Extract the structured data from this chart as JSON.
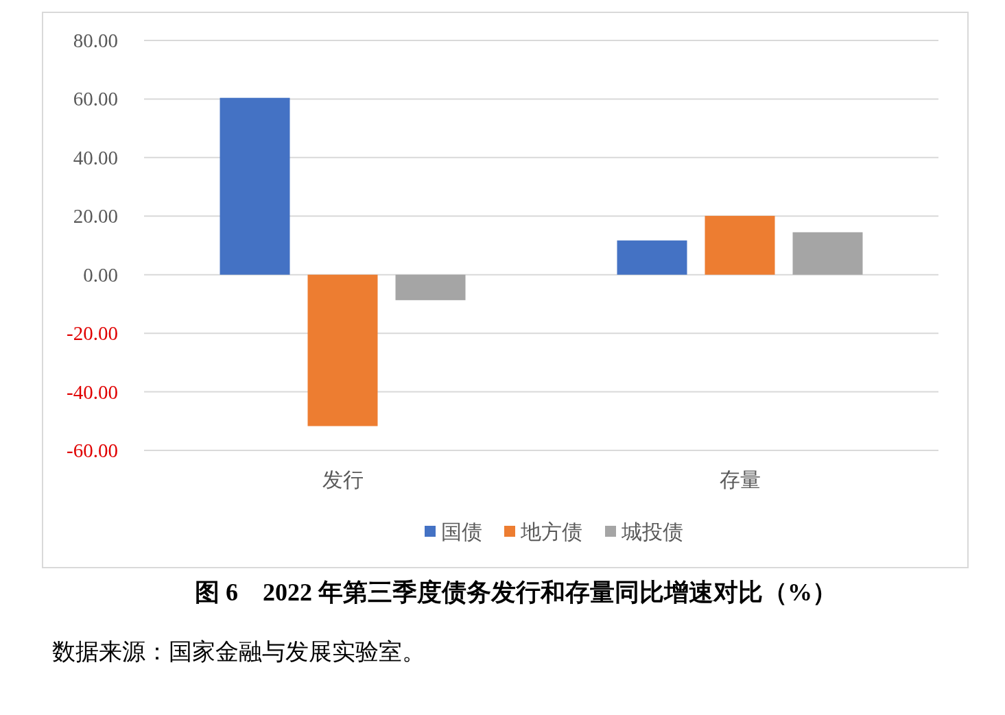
{
  "chart_data": {
    "type": "bar",
    "title": "图 6　2022 年第三季度债务发行和存量同比增速对比（%）",
    "annotations": [
      "数据来源：国家金融与发展实验室。"
    ],
    "categories": [
      "发行",
      "存量"
    ],
    "series": [
      {
        "name": "国债",
        "color": "#4472c4",
        "values": [
          60.4,
          11.7
        ]
      },
      {
        "name": "地方债",
        "color": "#ed7d31",
        "values": [
          -51.7,
          20.1
        ]
      },
      {
        "name": "城投债",
        "color": "#a5a5a5",
        "values": [
          -8.7,
          14.5
        ]
      }
    ],
    "ylim": [
      -60,
      80
    ],
    "yticks": [
      {
        "value": 80,
        "label": "80.00"
      },
      {
        "value": 60,
        "label": "60.00"
      },
      {
        "value": 40,
        "label": "40.00"
      },
      {
        "value": 20,
        "label": "20.00"
      },
      {
        "value": 0,
        "label": "0.00"
      },
      {
        "value": -20,
        "label": "-20.00"
      },
      {
        "value": -40,
        "label": "-40.00"
      },
      {
        "value": -60,
        "label": "-60.00"
      }
    ],
    "grid": "y",
    "legend": "bottom"
  }
}
